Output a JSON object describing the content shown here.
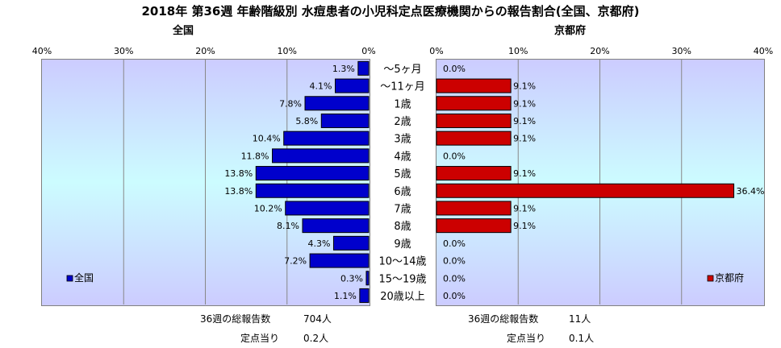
{
  "title": "2018年 第36週 年齢階級別 水痘患者の小児科定点医療機関からの報告割合(全国、京都府)",
  "colors": {
    "national": "#0000cc",
    "kyoto": "#cc0000",
    "grid": "#888888"
  },
  "chart_data": [
    {
      "type": "bar",
      "orientation": "horizontal",
      "direction": "right-to-left",
      "title": "全国",
      "legend": {
        "label": "全国",
        "placement": "bottom-left"
      },
      "categories": [
        "～5ヶ月",
        "～11ヶ月",
        "1歳",
        "2歳",
        "3歳",
        "4歳",
        "5歳",
        "6歳",
        "7歳",
        "8歳",
        "9歳",
        "10～14歳",
        "15～19歳",
        "20歳以上"
      ],
      "values": [
        1.3,
        4.1,
        7.8,
        5.8,
        10.4,
        11.8,
        13.8,
        13.8,
        10.2,
        8.1,
        4.3,
        7.2,
        0.3,
        1.1
      ],
      "value_labels": [
        "1.3%",
        "4.1%",
        "7.8%",
        "5.8%",
        "10.4%",
        "11.8%",
        "13.8%",
        "13.8%",
        "10.2%",
        "8.1%",
        "4.3%",
        "7.2%",
        "0.3%",
        "1.1%"
      ],
      "xlim": [
        0,
        40
      ],
      "ticks": [
        "0%",
        "10%",
        "20%",
        "30%",
        "40%"
      ],
      "grid": true
    },
    {
      "type": "bar",
      "orientation": "horizontal",
      "direction": "left-to-right",
      "title": "京都府",
      "legend": {
        "label": "京都府",
        "placement": "bottom-right"
      },
      "categories": [
        "～5ヶ月",
        "～11ヶ月",
        "1歳",
        "2歳",
        "3歳",
        "4歳",
        "5歳",
        "6歳",
        "7歳",
        "8歳",
        "9歳",
        "10～14歳",
        "15～19歳",
        "20歳以上"
      ],
      "values": [
        0.0,
        9.1,
        9.1,
        9.1,
        9.1,
        0.0,
        9.1,
        36.4,
        9.1,
        9.1,
        0.0,
        0.0,
        0.0,
        0.0
      ],
      "value_labels": [
        "0.0%",
        "9.1%",
        "9.1%",
        "9.1%",
        "9.1%",
        "0.0%",
        "9.1%",
        "36.4%",
        "9.1%",
        "9.1%",
        "0.0%",
        "0.0%",
        "0.0%",
        "0.0%"
      ],
      "xlim": [
        0,
        40
      ],
      "ticks": [
        "0%",
        "10%",
        "20%",
        "30%",
        "40%"
      ],
      "grid": true
    }
  ],
  "summary": {
    "national": {
      "total_label": "36週の総報告数",
      "total_value": "704人",
      "per_label": "定点当り",
      "per_value": "0.2人"
    },
    "kyoto": {
      "total_label": "36週の総報告数",
      "total_value": "11人",
      "per_label": "定点当り",
      "per_value": "0.1人"
    }
  }
}
